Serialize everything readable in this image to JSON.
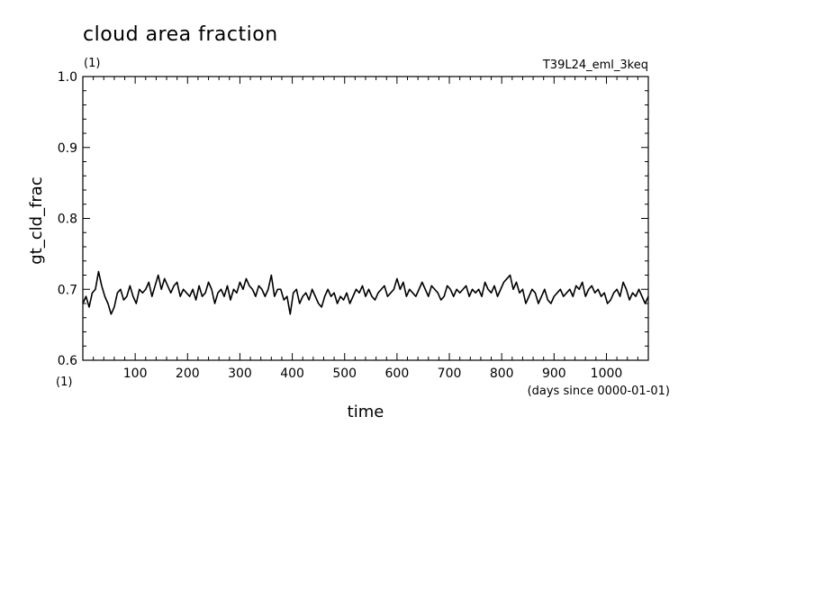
{
  "chart_data": {
    "type": "line",
    "title": "cloud area fraction",
    "units": "(1)",
    "experiment": "T39L24_eml_3keq",
    "xlabel": "time",
    "xunits": "(days since 0000-01-01)",
    "ylabel": "gt_cld_frac",
    "yunits": "(1)",
    "xlim": [
      0,
      1080
    ],
    "ylim": [
      0.6,
      1.0
    ],
    "xticks": [
      100,
      200,
      300,
      400,
      500,
      600,
      700,
      800,
      900,
      1000
    ],
    "yticks": [
      "0.6",
      "0.7",
      "0.8",
      "0.9",
      "1.0"
    ],
    "series": [
      {
        "x": [
          0,
          6,
          12,
          18,
          24,
          30,
          36,
          42,
          48,
          54,
          60,
          66,
          72,
          78,
          84,
          90,
          96,
          102,
          108,
          114,
          120,
          126,
          132,
          138,
          144,
          150,
          156,
          162,
          168,
          174,
          180,
          186,
          192,
          198,
          204,
          210,
          216,
          222,
          228,
          234,
          240,
          246,
          252,
          258,
          264,
          270,
          276,
          282,
          288,
          294,
          300,
          306,
          312,
          318,
          324,
          330,
          336,
          342,
          348,
          354,
          360,
          366,
          372,
          378,
          384,
          390,
          396,
          402,
          408,
          414,
          420,
          426,
          432,
          438,
          444,
          450,
          456,
          462,
          468,
          474,
          480,
          486,
          492,
          498,
          504,
          510,
          516,
          522,
          528,
          534,
          540,
          546,
          552,
          558,
          564,
          570,
          576,
          582,
          588,
          594,
          600,
          606,
          612,
          618,
          624,
          630,
          636,
          642,
          648,
          654,
          660,
          666,
          672,
          678,
          684,
          690,
          696,
          702,
          708,
          714,
          720,
          726,
          732,
          738,
          744,
          750,
          756,
          762,
          768,
          774,
          780,
          786,
          792,
          798,
          804,
          810,
          816,
          822,
          828,
          834,
          840,
          846,
          852,
          858,
          864,
          870,
          876,
          882,
          888,
          894,
          900,
          906,
          912,
          918,
          924,
          930,
          936,
          942,
          948,
          954,
          960,
          966,
          972,
          978,
          984,
          990,
          996,
          1002,
          1008,
          1014,
          1020,
          1026,
          1032,
          1038,
          1044,
          1050,
          1056,
          1062,
          1068,
          1074,
          1080
        ],
        "values": [
          0.68,
          0.69,
          0.675,
          0.695,
          0.7,
          0.725,
          0.705,
          0.69,
          0.68,
          0.665,
          0.675,
          0.695,
          0.7,
          0.685,
          0.69,
          0.705,
          0.69,
          0.68,
          0.7,
          0.695,
          0.7,
          0.71,
          0.69,
          0.705,
          0.72,
          0.7,
          0.715,
          0.705,
          0.695,
          0.705,
          0.71,
          0.69,
          0.7,
          0.695,
          0.69,
          0.7,
          0.685,
          0.705,
          0.69,
          0.695,
          0.71,
          0.7,
          0.68,
          0.695,
          0.7,
          0.69,
          0.705,
          0.685,
          0.7,
          0.695,
          0.71,
          0.7,
          0.715,
          0.705,
          0.7,
          0.69,
          0.705,
          0.7,
          0.69,
          0.7,
          0.72,
          0.69,
          0.7,
          0.7,
          0.685,
          0.69,
          0.665,
          0.695,
          0.7,
          0.68,
          0.69,
          0.695,
          0.685,
          0.7,
          0.69,
          0.68,
          0.675,
          0.69,
          0.7,
          0.69,
          0.695,
          0.68,
          0.69,
          0.685,
          0.695,
          0.68,
          0.69,
          0.7,
          0.695,
          0.705,
          0.69,
          0.7,
          0.69,
          0.685,
          0.695,
          0.7,
          0.705,
          0.69,
          0.695,
          0.7,
          0.715,
          0.7,
          0.71,
          0.69,
          0.7,
          0.695,
          0.69,
          0.7,
          0.71,
          0.7,
          0.69,
          0.705,
          0.7,
          0.695,
          0.685,
          0.69,
          0.705,
          0.7,
          0.69,
          0.7,
          0.695,
          0.7,
          0.705,
          0.69,
          0.7,
          0.695,
          0.7,
          0.69,
          0.71,
          0.7,
          0.695,
          0.705,
          0.69,
          0.7,
          0.71,
          0.715,
          0.72,
          0.7,
          0.71,
          0.695,
          0.7,
          0.68,
          0.69,
          0.7,
          0.695,
          0.68,
          0.69,
          0.7,
          0.685,
          0.68,
          0.69,
          0.695,
          0.7,
          0.69,
          0.695,
          0.7,
          0.69,
          0.705,
          0.7,
          0.71,
          0.69,
          0.7,
          0.705,
          0.695,
          0.7,
          0.69,
          0.695,
          0.68,
          0.685,
          0.695,
          0.7,
          0.69,
          0.71,
          0.7,
          0.685,
          0.695,
          0.69,
          0.7,
          0.69,
          0.68,
          0.69
        ]
      }
    ]
  }
}
